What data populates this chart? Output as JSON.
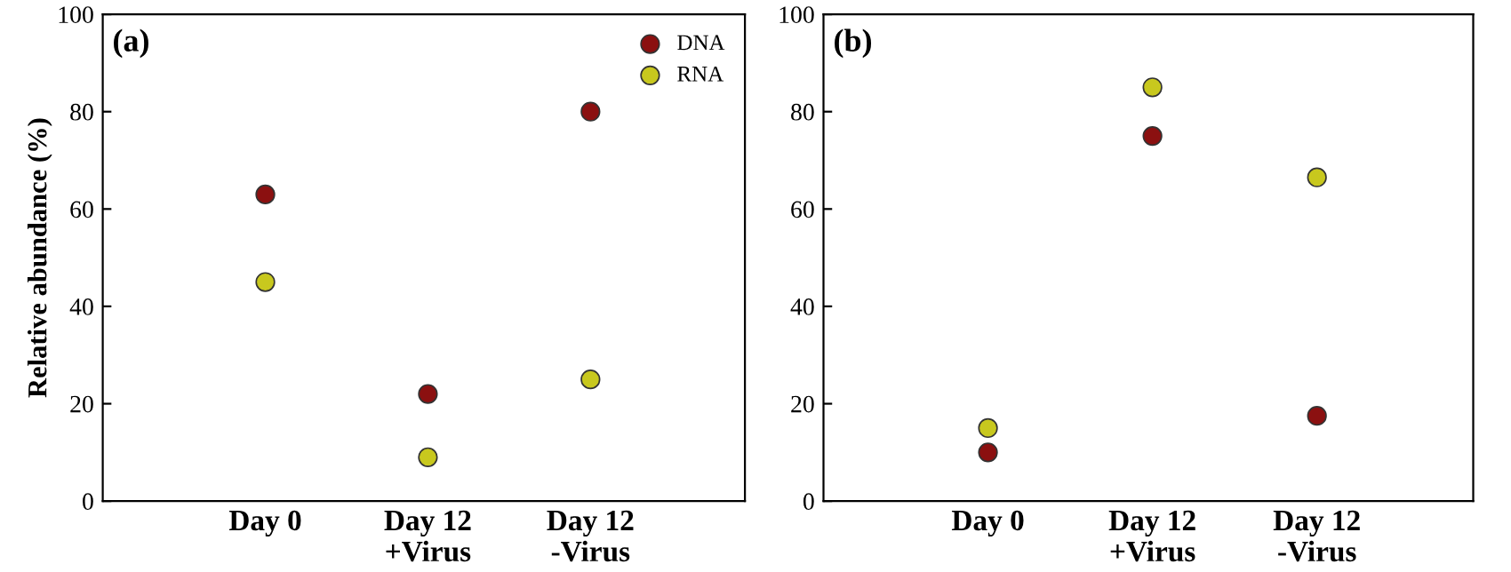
{
  "chart_data": [
    {
      "type": "scatter",
      "title": "(a)",
      "ylabel": "Relative abundance (%)",
      "categories": [
        "Day 0",
        "Day 12\n+Virus",
        "Day 12\n-Virus"
      ],
      "series": [
        {
          "name": "DNA",
          "color": "#8b1010",
          "values": [
            63,
            22,
            80
          ]
        },
        {
          "name": "RNA",
          "color": "#c8c81e",
          "values": [
            45,
            9,
            25
          ]
        }
      ],
      "ylim": [
        0,
        100
      ],
      "yticks": [
        0,
        20,
        40,
        60,
        80,
        100
      ],
      "grid": false,
      "legend": "top right",
      "marker": "circle"
    },
    {
      "type": "scatter",
      "title": "(b)",
      "categories": [
        "Day 0",
        "Day 12\n+Virus",
        "Day 12\n-Virus"
      ],
      "series": [
        {
          "color": "#8b1010",
          "values": [
            10,
            75,
            17.5
          ]
        },
        {
          "color": "#c8c81e",
          "values": [
            15,
            85,
            66.5
          ]
        }
      ],
      "ylim": [
        0,
        100
      ],
      "yticks": [
        0,
        20,
        40,
        60,
        80,
        100
      ],
      "grid": false,
      "legend": false,
      "marker": "circle"
    }
  ]
}
